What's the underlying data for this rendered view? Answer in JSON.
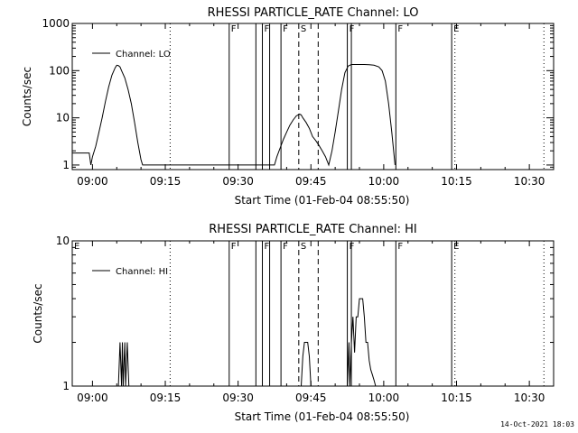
{
  "footer": {
    "timestamp": "14-Oct-2021 18:03"
  },
  "chart_data": [
    {
      "type": "line",
      "title": "RHESSI PARTICLE_RATE Channel: LO",
      "xlabel": "Start Time (01-Feb-04 08:55:50)",
      "ylabel": "Counts/sec",
      "y_scale": "log",
      "xlim": [
        "08:55:50",
        "10:35:00"
      ],
      "ylim": [
        0.8,
        1000
      ],
      "x_ticks": [
        "09:00",
        "09:15",
        "09:30",
        "09:45",
        "10:00",
        "10:15",
        "10:30"
      ],
      "y_ticks": [
        "1",
        "10",
        "100",
        "1000"
      ],
      "legend": {
        "position": "top-left",
        "entries": [
          "Channel: LO"
        ]
      },
      "series": [
        {
          "name": "Channel: LO",
          "x": [
            "08:55:50",
            "08:58:00",
            "08:59:20",
            "08:59:40",
            "09:00:00",
            "09:00:40",
            "09:01:20",
            "09:02:00",
            "09:02:40",
            "09:03:20",
            "09:04:00",
            "09:04:40",
            "09:05:00",
            "09:05:20",
            "09:05:40",
            "09:06:00",
            "09:06:40",
            "09:07:20",
            "09:08:00",
            "09:08:40",
            "09:09:20",
            "09:10:00",
            "09:10:20",
            "09:37:30",
            "09:38:00",
            "09:38:40",
            "09:39:20",
            "09:40:00",
            "09:40:40",
            "09:41:20",
            "09:42:00",
            "09:42:40",
            "09:43:00",
            "09:43:20",
            "09:44:00",
            "09:44:40",
            "09:45:20",
            "09:46:00",
            "09:46:40",
            "09:47:20",
            "09:48:00",
            "09:48:40",
            "09:49:20",
            "09:50:00",
            "09:50:40",
            "09:51:20",
            "09:52:00",
            "09:52:40",
            "09:53:20",
            "09:54:00",
            "09:54:40",
            "09:55:20",
            "09:56:00",
            "09:57:00",
            "09:58:00",
            "09:59:00",
            "09:59:40",
            "10:00:20",
            "10:01:00",
            "10:01:40",
            "10:02:20"
          ],
          "y": [
            1.8,
            1.8,
            1.8,
            1.0,
            1.5,
            2.5,
            5,
            10,
            22,
            45,
            80,
            115,
            130,
            128,
            120,
            100,
            70,
            40,
            20,
            8,
            3,
            1.3,
            1.0,
            1.0,
            1.5,
            2.3,
            3.5,
            5,
            7,
            9,
            11,
            12,
            11.5,
            10,
            8,
            6,
            4,
            3.3,
            2.6,
            2,
            1.5,
            1.0,
            2,
            5,
            14,
            40,
            90,
            125,
            135,
            135,
            135,
            135,
            135,
            134,
            130,
            120,
            100,
            60,
            20,
            5,
            1.0
          ]
        }
      ],
      "markers": [
        {
          "time": "09:28:10",
          "label": "F",
          "style": "solid"
        },
        {
          "time": "09:33:40",
          "label": "",
          "style": "solid"
        },
        {
          "time": "09:35:00",
          "label": "F",
          "style": "solid"
        },
        {
          "time": "09:36:30",
          "label": "",
          "style": "solid"
        },
        {
          "time": "09:38:50",
          "label": "F",
          "style": "solid"
        },
        {
          "time": "09:42:30",
          "label": "S",
          "style": "dashed"
        },
        {
          "time": "09:46:30",
          "label": "",
          "style": "dashed"
        },
        {
          "time": "09:52:30",
          "label": "F",
          "style": "solid"
        },
        {
          "time": "09:53:20",
          "label": "",
          "style": "solid"
        },
        {
          "time": "10:02:30",
          "label": "F",
          "style": "solid"
        },
        {
          "time": "10:14:00",
          "label": "E",
          "style": "solid"
        },
        {
          "time": "09:16:00",
          "label": "",
          "style": "dotted"
        },
        {
          "time": "10:14:40",
          "label": "",
          "style": "dotted"
        },
        {
          "time": "10:33:00",
          "label": "",
          "style": "dotted"
        }
      ]
    },
    {
      "type": "line",
      "title": "RHESSI PARTICLE_RATE Channel: HI",
      "xlabel": "Start Time (01-Feb-04 08:55:50)",
      "ylabel": "Counts/sec",
      "y_scale": "log",
      "xlim": [
        "08:55:50",
        "10:35:00"
      ],
      "ylim": [
        1,
        10
      ],
      "x_ticks": [
        "09:00",
        "09:15",
        "09:30",
        "09:45",
        "10:00",
        "10:15",
        "10:30"
      ],
      "y_ticks": [
        "1",
        "10"
      ],
      "legend": {
        "position": "top-left",
        "entries": [
          "Channel: HI"
        ]
      },
      "series": [
        {
          "name": "Channel: HI",
          "x": [
            "09:05:20",
            "09:05:40",
            "09:06:00",
            "09:06:10",
            "09:06:20",
            "09:06:40",
            "09:06:50",
            "09:07:10",
            "09:07:30",
            "09:43:00",
            "09:43:20",
            "09:43:40",
            "09:44:00",
            "09:44:20",
            "09:44:40",
            "09:45:00",
            "09:52:30",
            "09:52:50",
            "09:53:00",
            "09:53:20",
            "09:53:40",
            "09:54:00",
            "09:54:20",
            "09:54:40",
            "09:55:00",
            "09:55:20",
            "09:55:40",
            "09:56:00",
            "09:56:20",
            "09:56:40",
            "09:57:00",
            "09:57:20",
            "09:57:40",
            "09:58:00",
            "09:58:20"
          ],
          "y": [
            1,
            2,
            1,
            2,
            1,
            2,
            1,
            2,
            1,
            1,
            1.6,
            2,
            2,
            2,
            1.6,
            1,
            1,
            2,
            1,
            2,
            3,
            1.7,
            3,
            3,
            4,
            4,
            4,
            3,
            2,
            2,
            1.5,
            1.3,
            1.2,
            1.1,
            1
          ]
        }
      ],
      "markers": [
        {
          "time": "08:55:50",
          "label": "E",
          "style": "none"
        },
        {
          "time": "09:28:10",
          "label": "F",
          "style": "solid"
        },
        {
          "time": "09:33:40",
          "label": "",
          "style": "solid"
        },
        {
          "time": "09:35:00",
          "label": "F",
          "style": "solid"
        },
        {
          "time": "09:36:30",
          "label": "",
          "style": "solid"
        },
        {
          "time": "09:38:50",
          "label": "F",
          "style": "solid"
        },
        {
          "time": "09:42:30",
          "label": "S",
          "style": "dashed"
        },
        {
          "time": "09:46:30",
          "label": "",
          "style": "dashed"
        },
        {
          "time": "09:52:30",
          "label": "F",
          "style": "solid"
        },
        {
          "time": "09:53:20",
          "label": "",
          "style": "solid"
        },
        {
          "time": "10:02:30",
          "label": "F",
          "style": "solid"
        },
        {
          "time": "10:14:00",
          "label": "E",
          "style": "solid"
        },
        {
          "time": "09:16:00",
          "label": "",
          "style": "dotted"
        },
        {
          "time": "10:14:40",
          "label": "",
          "style": "dotted"
        },
        {
          "time": "10:33:00",
          "label": "",
          "style": "dotted"
        }
      ]
    }
  ]
}
